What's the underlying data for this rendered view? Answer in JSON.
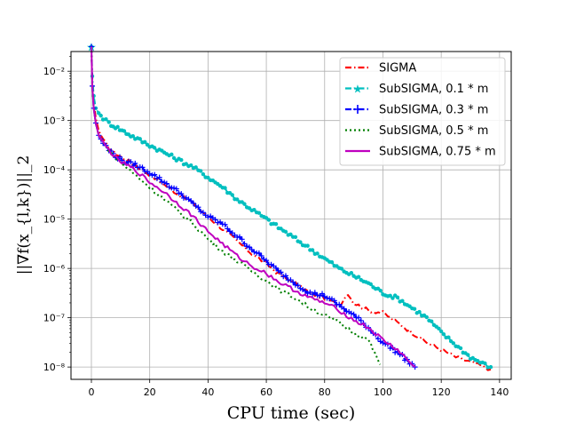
{
  "chart_data": {
    "type": "line",
    "title": "",
    "xlabel": "CPU time (sec)",
    "ylabel": "||∇f(x_{l,k})||_2",
    "xlim": [
      -7,
      144
    ],
    "ylim_log10": [
      -8.25,
      -1.6
    ],
    "yscale": "log",
    "grid": true,
    "legend_position": "top-right",
    "x_ticks": [
      0,
      20,
      40,
      60,
      80,
      100,
      120,
      140
    ],
    "x_tick_labels": [
      "0",
      "20",
      "40",
      "60",
      "80",
      "100",
      "120",
      "140"
    ],
    "y_ticks": [
      -8,
      -7,
      -6,
      -5,
      -4,
      -3,
      -2
    ],
    "y_tick_labels": [
      "10⁻⁸",
      "10⁻⁷",
      "10⁻⁶",
      "10⁻⁵",
      "10⁻⁴",
      "10⁻³",
      "10⁻²"
    ],
    "series": [
      {
        "name": "SIGMA",
        "color": "#ff0000",
        "dash": "dashdot",
        "marker": "none",
        "x": [
          0,
          0.3,
          0.8,
          1.5,
          2.5,
          4,
          6,
          9,
          12,
          15,
          20,
          25,
          30,
          35,
          40,
          45,
          50,
          55,
          60,
          65,
          70,
          75,
          80,
          85,
          88,
          90,
          95,
          100,
          105,
          110,
          115,
          120,
          125,
          130,
          135,
          137
        ],
        "log10_y": [
          -1.5,
          -2.2,
          -2.6,
          -2.95,
          -3.2,
          -3.4,
          -3.55,
          -3.7,
          -3.8,
          -3.9,
          -4.1,
          -4.3,
          -4.5,
          -4.7,
          -4.95,
          -5.2,
          -5.45,
          -5.7,
          -5.9,
          -6.15,
          -6.3,
          -6.5,
          -6.6,
          -6.75,
          -6.5,
          -6.7,
          -6.85,
          -6.9,
          -7.1,
          -7.3,
          -7.5,
          -7.65,
          -7.8,
          -7.9,
          -8.0,
          -8.05
        ]
      },
      {
        "name": "SubSIGMA, 0.1 * m",
        "color": "#00bfbf",
        "dash": "dashdot",
        "marker": "star",
        "x": [
          0,
          0.3,
          0.8,
          1.5,
          2.5,
          4,
          6,
          9,
          12,
          15,
          20,
          25,
          30,
          35,
          40,
          45,
          50,
          55,
          60,
          65,
          70,
          75,
          80,
          85,
          90,
          95,
          100,
          105,
          110,
          115,
          120,
          125,
          130,
          135,
          137
        ],
        "log10_y": [
          -1.5,
          -2.1,
          -2.5,
          -2.75,
          -2.85,
          -2.95,
          -3.05,
          -3.15,
          -3.25,
          -3.35,
          -3.5,
          -3.65,
          -3.8,
          -3.95,
          -4.15,
          -4.35,
          -4.6,
          -4.8,
          -5.0,
          -5.2,
          -5.4,
          -5.6,
          -5.8,
          -6.0,
          -6.15,
          -6.3,
          -6.5,
          -6.6,
          -6.8,
          -7.0,
          -7.3,
          -7.55,
          -7.8,
          -7.95,
          -8.0
        ]
      },
      {
        "name": "SubSIGMA, 0.3 * m",
        "color": "#0000ff",
        "dash": "dashdot",
        "marker": "plus",
        "x": [
          0,
          0.3,
          0.8,
          1.5,
          2.5,
          4,
          6,
          9,
          12,
          15,
          20,
          25,
          30,
          35,
          40,
          45,
          50,
          55,
          60,
          65,
          70,
          75,
          80,
          85,
          90,
          95,
          100,
          105,
          110,
          111
        ],
        "log10_y": [
          -1.5,
          -2.3,
          -2.75,
          -3.05,
          -3.3,
          -3.45,
          -3.6,
          -3.75,
          -3.85,
          -3.9,
          -4.05,
          -4.25,
          -4.45,
          -4.7,
          -4.95,
          -5.1,
          -5.35,
          -5.6,
          -5.85,
          -6.1,
          -6.3,
          -6.5,
          -6.55,
          -6.75,
          -6.95,
          -7.2,
          -7.5,
          -7.7,
          -7.95,
          -8.0
        ]
      },
      {
        "name": "SubSIGMA, 0.5 * m",
        "color": "#007f00",
        "dash": "dotted",
        "marker": "none",
        "x": [
          0,
          0.3,
          0.8,
          1.5,
          2.5,
          4,
          6,
          9,
          12,
          15,
          20,
          25,
          30,
          35,
          40,
          45,
          50,
          55,
          60,
          65,
          70,
          75,
          80,
          85,
          90,
          95,
          99
        ],
        "log10_y": [
          -1.5,
          -2.3,
          -2.75,
          -3.05,
          -3.3,
          -3.45,
          -3.6,
          -3.8,
          -3.95,
          -4.1,
          -4.35,
          -4.6,
          -4.85,
          -5.1,
          -5.4,
          -5.65,
          -5.85,
          -6.05,
          -6.25,
          -6.45,
          -6.6,
          -6.8,
          -6.95,
          -7.1,
          -7.3,
          -7.45,
          -7.95
        ]
      },
      {
        "name": "SubSIGMA, 0.75 * m",
        "color": "#bf00bf",
        "dash": "solid",
        "marker": "none",
        "x": [
          0,
          0.3,
          0.8,
          1.5,
          2.5,
          4,
          6,
          9,
          12,
          15,
          20,
          25,
          30,
          35,
          40,
          45,
          50,
          55,
          60,
          65,
          70,
          75,
          80,
          85,
          90,
          95,
          100,
          105,
          110,
          111
        ],
        "log10_y": [
          -1.5,
          -2.3,
          -2.75,
          -3.05,
          -3.3,
          -3.45,
          -3.6,
          -3.8,
          -3.9,
          -4.0,
          -4.25,
          -4.45,
          -4.7,
          -4.95,
          -5.25,
          -5.5,
          -5.75,
          -5.95,
          -6.1,
          -6.3,
          -6.45,
          -6.6,
          -6.7,
          -6.85,
          -7.05,
          -7.2,
          -7.45,
          -7.65,
          -7.95,
          -8.0
        ]
      }
    ]
  }
}
